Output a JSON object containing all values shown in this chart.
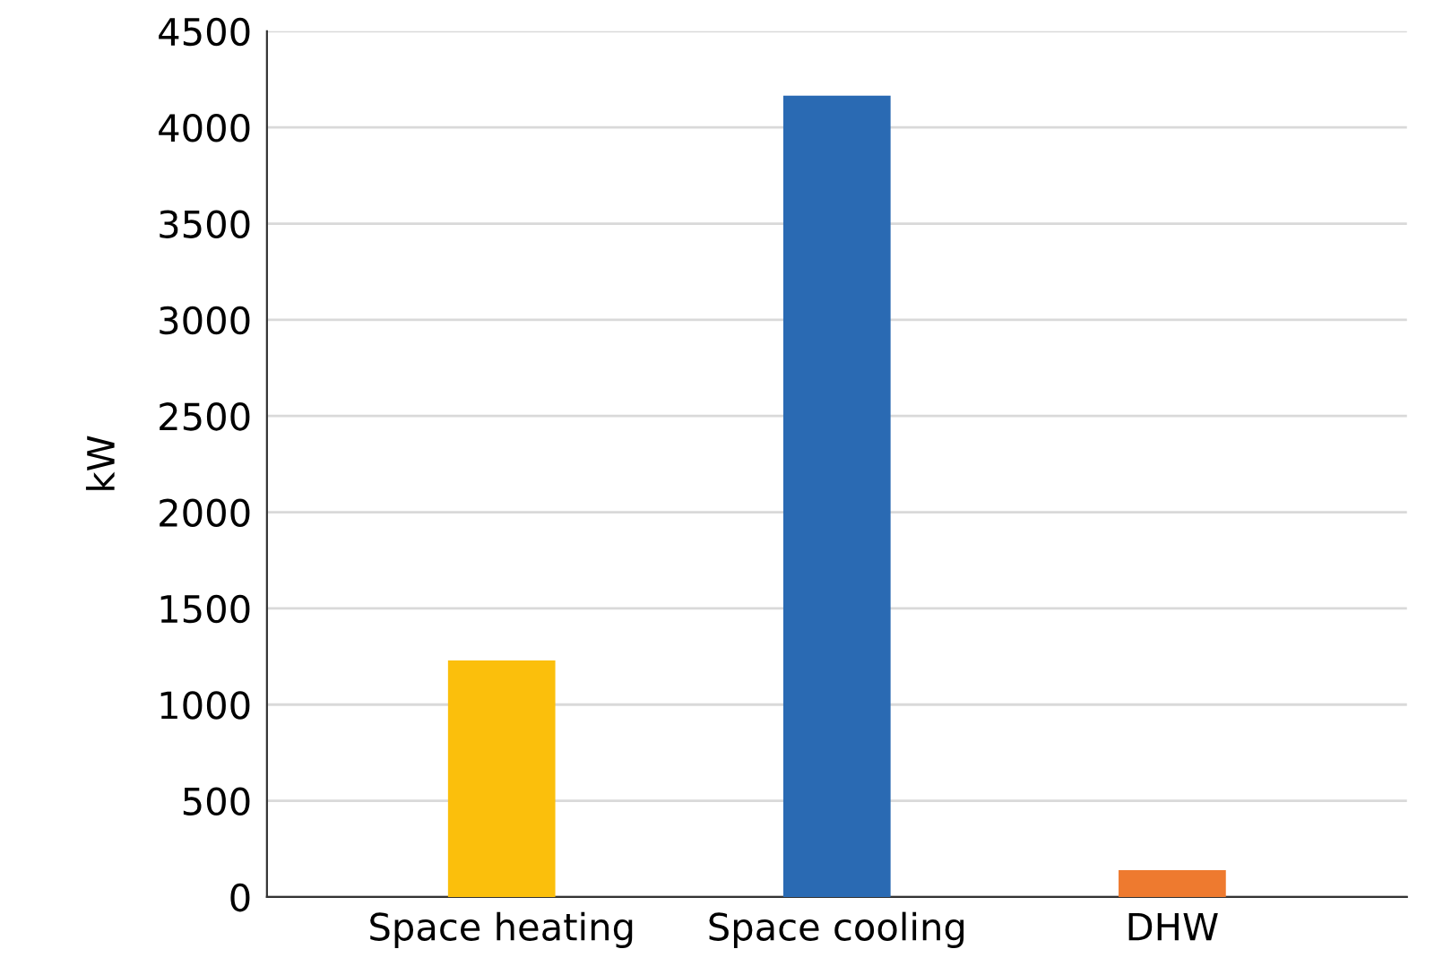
{
  "chart_data": {
    "type": "bar",
    "ylabel": "kW",
    "categories": [
      "Space heating",
      "Space cooling",
      "DHW"
    ],
    "values": [
      1230,
      4165,
      140
    ],
    "colors": [
      "#fbbf0c",
      "#2a6ab3",
      "#ee7a2f"
    ],
    "ylim": [
      0,
      4500
    ],
    "yticks": [
      0,
      500,
      1000,
      1500,
      2000,
      2500,
      3000,
      3500,
      4000,
      4500
    ],
    "grid": "y",
    "legend": false
  }
}
